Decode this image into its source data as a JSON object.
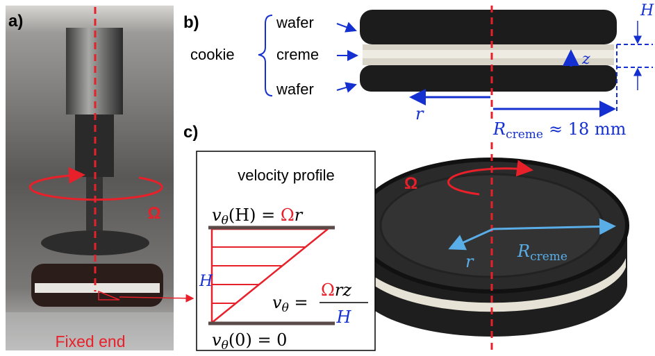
{
  "panels": {
    "a": "a)",
    "b": "b)",
    "c": "c)"
  },
  "panel_a": {
    "omega": "Ω",
    "fixed_end": "Fixed end"
  },
  "panel_b": {
    "cookie": "cookie",
    "layers": [
      "wafer",
      "creme",
      "wafer"
    ],
    "height": "H",
    "z": "z",
    "r": "r",
    "radius": {
      "symbol": "R",
      "subscript": "creme",
      "relation": "≈ 18 mm"
    }
  },
  "panel_c": {
    "omega": "Ω",
    "r": "r",
    "radius": {
      "symbol": "R",
      "subscript": "creme"
    }
  },
  "velocity_profile": {
    "title": "velocity profile",
    "top": {
      "v": "v",
      "sub": "θ",
      "arg": "(H) = ",
      "omega": "Ω",
      "r": "r"
    },
    "height": "H",
    "middle": {
      "v": "v",
      "sub": "θ",
      "eq": " = ",
      "omega": "Ω",
      "rz": "rz",
      "den": "H"
    },
    "bottom": {
      "v": "v",
      "sub": "θ",
      "rest": "(0) = 0"
    }
  }
}
